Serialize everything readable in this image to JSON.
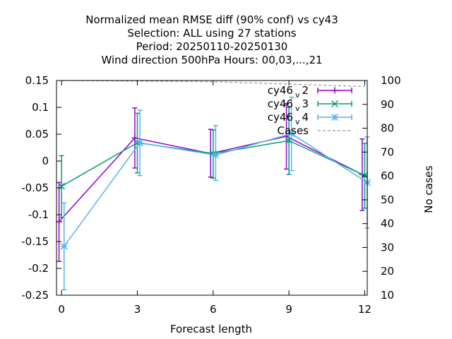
{
  "chart_data": {
    "type": "line",
    "title_lines": [
      "Normalized mean RMSE diff (90% conf) vs cy43",
      "Selection: ALL using    27 stations",
      "Period: 20250110-20250130",
      "Wind direction 500hPa   Hours:  00,03,...,21"
    ],
    "xlabel": "Forecast length",
    "ylabel_right": "No cases",
    "x": [
      0,
      3,
      6,
      9,
      12
    ],
    "x_ticks": [
      "0",
      "3",
      "6",
      "9",
      "12"
    ],
    "xlim": [
      -0.2,
      12.1
    ],
    "ylim": [
      -0.25,
      0.15
    ],
    "y_ticks": [
      "-0.25",
      "-0.2",
      "-0.15",
      "-0.1",
      "-0.05",
      "0",
      "0.05",
      "0.1",
      "0.15"
    ],
    "y2lim": [
      10,
      100
    ],
    "y2_ticks": [
      "10",
      "20",
      "30",
      "40",
      "50",
      "60",
      "70",
      "80",
      "90",
      "100"
    ],
    "grid": false,
    "legend_position": "top-right",
    "series": [
      {
        "name_main": "cy46",
        "name_sub": "v",
        "name_tail": "2",
        "color": "#9400d3",
        "marker": "plus",
        "offset": -0.1,
        "values": [
          -0.113,
          0.043,
          0.014,
          0.046,
          -0.025
        ],
        "err_low": [
          -0.187,
          -0.013,
          -0.03,
          -0.015,
          -0.092
        ],
        "err_high": [
          -0.04,
          0.099,
          0.059,
          0.107,
          0.041
        ]
      },
      {
        "name_main": "cy46",
        "name_sub": "v",
        "name_tail": "3",
        "color": "#009e73",
        "marker": "cross",
        "offset": 0.0,
        "values": [
          -0.047,
          0.034,
          0.014,
          0.038,
          -0.027
        ],
        "err_low": [
          -0.105,
          -0.022,
          -0.032,
          -0.025,
          -0.088
        ],
        "err_high": [
          0.01,
          0.089,
          0.058,
          0.1,
          0.033
        ]
      },
      {
        "name_main": "cy46",
        "name_sub": "v",
        "name_tail": "4",
        "color": "#56b4e9",
        "marker": "star",
        "offset": 0.1,
        "values": [
          -0.159,
          0.034,
          0.011,
          0.051,
          -0.04
        ],
        "err_low": [
          -0.24,
          -0.027,
          -0.036,
          -0.018,
          -0.125
        ],
        "err_high": [
          -0.078,
          0.095,
          0.066,
          0.119,
          0.045
        ]
      },
      {
        "name_main": "Cases",
        "name_sub": "",
        "name_tail": "",
        "color": "#999999",
        "marker": "none",
        "dashed": true,
        "axis": "y2",
        "x": [
          0,
          6,
          9,
          12
        ],
        "values": [
          100,
          99.5,
          98.5,
          97.5
        ]
      }
    ]
  }
}
